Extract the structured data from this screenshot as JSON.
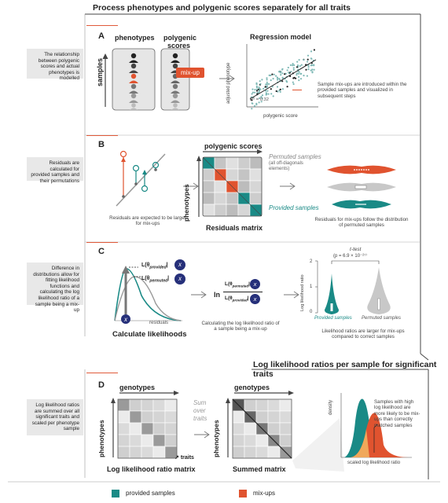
{
  "top_title": "Process phenotypes and polygenic scores separately for all traits",
  "bottom_title": "Log likelihood ratios per sample for significant traits",
  "panels": {
    "a": {
      "letter": "A",
      "side_text": "The relationship between polygenic scores and actual phenotypes is modelled",
      "col_phenotypes": "phenotypes",
      "col_polygenic": "polygenic",
      "col_scores": "scores",
      "mixup_label": "mix-up",
      "samples_label": "samples",
      "regression_title": "Regression model",
      "y_axis": "adjusted phenotype",
      "x_axis": "polygenic score",
      "r2": "R² = 0.32",
      "note": "Sample mix-ups are introduced within the provided samples and visualized in subsequent steps"
    },
    "b": {
      "letter": "B",
      "side_text": "Residuals are calculated for provided samples and their permutations",
      "residual_note": "Residuals are expected to be larger for mix-ups",
      "matrix_top": "polygenic scores",
      "matrix_side": "phenotypes",
      "matrix_title": "Residuals matrix",
      "permuted": "Permuted samples",
      "permuted_sub": "(all off-diagonals elements)",
      "provided": "Provided samples",
      "violin_note": "Residuals for mix-ups follow the distribution of permuted samples"
    },
    "c": {
      "letter": "C",
      "side_text": "Difference in distributions allow for fitting likelihood functions and calculating the log likelihood ratio of a sample being a mix-up",
      "l_provided": "L(θ",
      "sub_provided": "provided",
      "sub_permuted": "permuted",
      "x_glyph": "x",
      "residuals_label": "residuals",
      "calc_title": "Calculate likelihoods",
      "ln": "ln",
      "llr_note": "Calculating the log likelihood ratio of a sample being a mix-up",
      "ttest": "t-test",
      "pval": "(p = 6.9 × 10⁻²⁷⁾",
      "y_axis": "Log likelihood ratio",
      "y_ticks": [
        "2",
        "1",
        "0"
      ],
      "x_labels": [
        "Provided samples",
        "Permuted samples"
      ],
      "ratio_note": "Likelihood ratios are larger for mix-ups compared to correct samples"
    },
    "d": {
      "letter": "D",
      "side_text": "Log likelihood ratios are summed over all significant traits and scaled per phenotype sample",
      "genotypes": "genotypes",
      "phenotypes": "phenotypes",
      "traits": "traits",
      "sum_text": "Sum over traits",
      "llr_matrix": "Log likelihood ratio matrix",
      "summed_matrix": "Summed matrix",
      "density": "density",
      "density_note": "Samples with high log likelihood are more likely to be mix-ups than correctly matched samples",
      "x_axis": "scaled log likelihood ratio"
    }
  },
  "legend": {
    "provided": "provided samples",
    "mixups": "mix-ups"
  },
  "colors": {
    "teal": "#1a8a86",
    "red": "#e0532f",
    "orange": "#f0a85a",
    "navy": "#26307a",
    "grey": "#9a9a9a"
  },
  "icons": [
    "person-icon",
    "arrow-right-icon",
    "residual-arrow-icon"
  ]
}
